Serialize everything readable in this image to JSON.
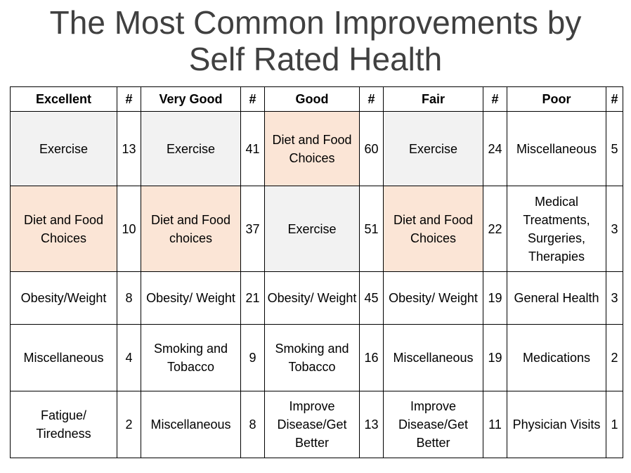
{
  "title": {
    "line1": "The Most Common Improvements by",
    "line2": "Self Rated Health"
  },
  "colors": {
    "title": "#404040",
    "highlight_gray": "#f2f2f2",
    "highlight_peach": "#fbe5d6"
  },
  "headers": [
    "Excellent",
    "#",
    "Very Good",
    "#",
    "Good",
    "#",
    "Fair",
    "#",
    "Poor",
    "#"
  ],
  "rows": [
    [
      {
        "text": "Exercise",
        "shade": "gray"
      },
      {
        "text": "13"
      },
      {
        "text": "Exercise",
        "shade": "gray"
      },
      {
        "text": "41"
      },
      {
        "text": "Diet and Food Choices",
        "shade": "peach"
      },
      {
        "text": "60"
      },
      {
        "text": "Exercise",
        "shade": "gray"
      },
      {
        "text": "24"
      },
      {
        "text": "Miscellaneous"
      },
      {
        "text": "5"
      }
    ],
    [
      {
        "text": "Diet and Food Choices",
        "shade": "peach"
      },
      {
        "text": "10"
      },
      {
        "text": "Diet and Food choices",
        "shade": "peach"
      },
      {
        "text": "37"
      },
      {
        "text": "Exercise",
        "shade": "gray"
      },
      {
        "text": "51"
      },
      {
        "text": "Diet and Food Choices",
        "shade": "peach"
      },
      {
        "text": "22"
      },
      {
        "text": "Medical Treatments, Surgeries, Therapies"
      },
      {
        "text": "3"
      }
    ],
    [
      {
        "text": "Obesity/Weight"
      },
      {
        "text": "8"
      },
      {
        "text": "Obesity/ Weight"
      },
      {
        "text": "21"
      },
      {
        "text": "Obesity/ Weight"
      },
      {
        "text": "45"
      },
      {
        "text": "Obesity/ Weight"
      },
      {
        "text": "19"
      },
      {
        "text": "General Health"
      },
      {
        "text": "3"
      }
    ],
    [
      {
        "text": "Miscellaneous"
      },
      {
        "text": "4"
      },
      {
        "text": "Smoking and Tobacco"
      },
      {
        "text": "9"
      },
      {
        "text": "Smoking and Tobacco"
      },
      {
        "text": "16"
      },
      {
        "text": "Miscellaneous"
      },
      {
        "text": "19"
      },
      {
        "text": "Medications"
      },
      {
        "text": "2"
      }
    ],
    [
      {
        "text": "Fatigue/ Tiredness"
      },
      {
        "text": "2"
      },
      {
        "text": "Miscellaneous"
      },
      {
        "text": "8"
      },
      {
        "text": "Improve Disease/Get Better"
      },
      {
        "text": "13"
      },
      {
        "text": "Improve Disease/Get Better"
      },
      {
        "text": "11"
      },
      {
        "text": "Physician Visits"
      },
      {
        "text": "1"
      }
    ]
  ]
}
